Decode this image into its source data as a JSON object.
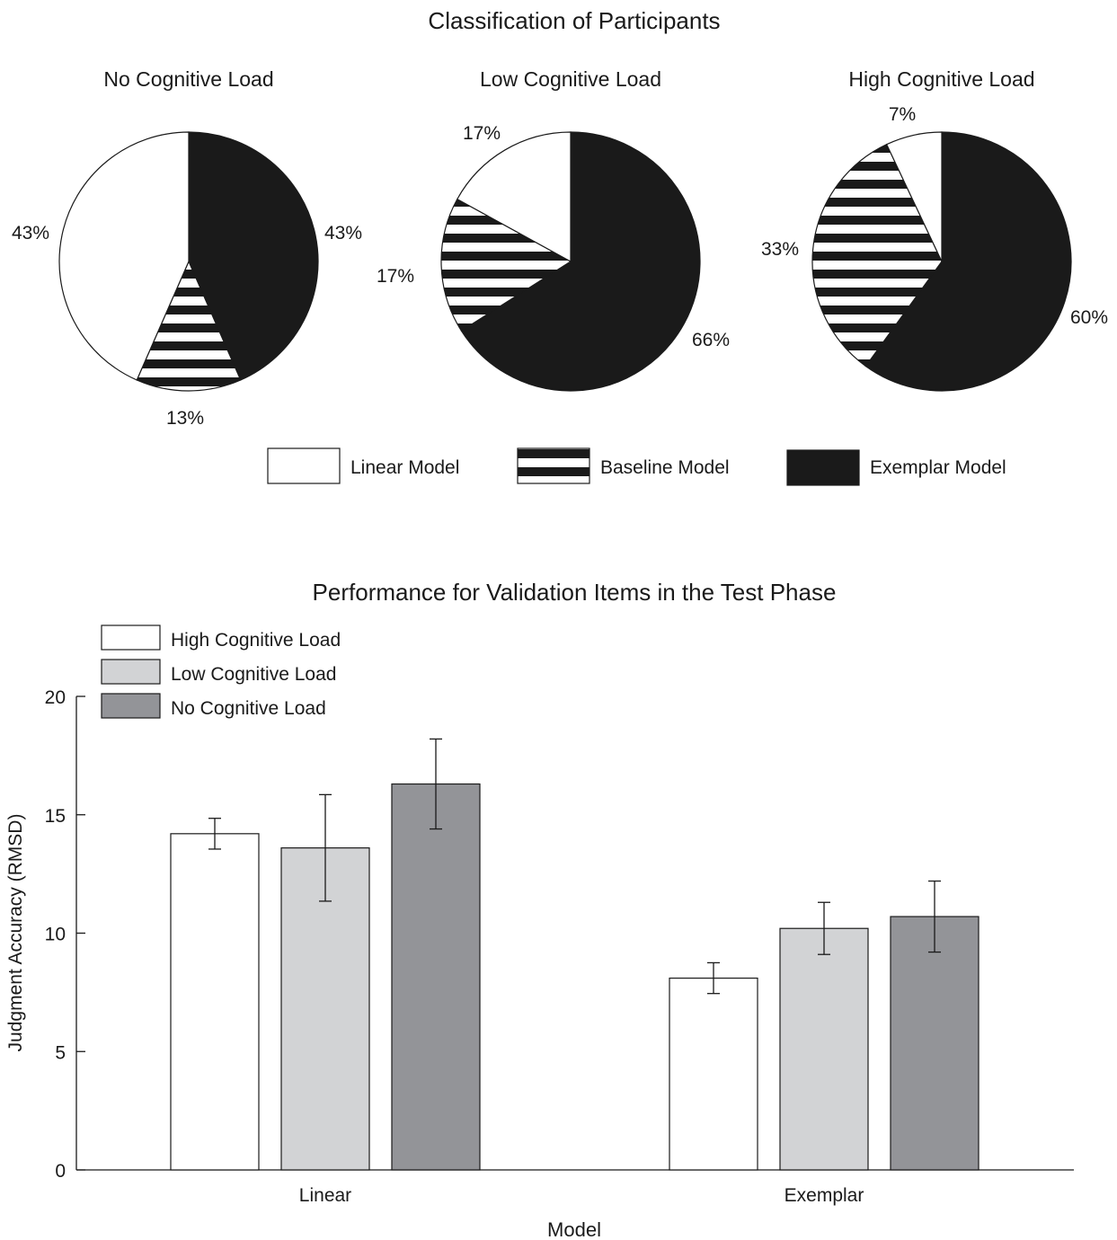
{
  "figure": {
    "top_title": "Classification of Participants",
    "bottom_title": "Performance for Validation Items in the Test Phase"
  },
  "colors": {
    "linear_model": "#ffffff",
    "baseline_model": "striped-black-white",
    "exemplar_model": "#1a1a1a",
    "high_load": "#ffffff",
    "low_load": "#d2d3d5",
    "no_load": "#939498"
  },
  "chart_data": [
    {
      "type": "pie",
      "title": "No Cognitive Load",
      "slices": [
        {
          "name": "Exemplar Model",
          "value": 43,
          "label": "43%"
        },
        {
          "name": "Baseline Model",
          "value": 13,
          "label": "13%"
        },
        {
          "name": "Linear Model",
          "value": 43,
          "label": "43%"
        }
      ]
    },
    {
      "type": "pie",
      "title": "Low Cognitive Load",
      "slices": [
        {
          "name": "Exemplar Model",
          "value": 66,
          "label": "66%"
        },
        {
          "name": "Baseline Model",
          "value": 17,
          "label": "17%"
        },
        {
          "name": "Linear Model",
          "value": 17,
          "label": "17%"
        }
      ]
    },
    {
      "type": "pie",
      "title": "High Cognitive Load",
      "slices": [
        {
          "name": "Exemplar Model",
          "value": 60,
          "label": "60%"
        },
        {
          "name": "Baseline Model",
          "value": 33,
          "label": "33%"
        },
        {
          "name": "Linear Model",
          "value": 7,
          "label": "7%"
        }
      ]
    },
    {
      "type": "bar",
      "title": "Performance for Validation Items in the Test Phase",
      "xlabel": "Model",
      "ylabel": "Judgment Accuracy (RMSD)",
      "categories": [
        "Linear",
        "Exemplar"
      ],
      "ylim": [
        0,
        20
      ],
      "yticks": [
        0,
        5,
        10,
        15,
        20
      ],
      "legend_position": "top-left",
      "series": [
        {
          "name": "High Cognitive Load",
          "values": [
            14.2,
            8.1
          ],
          "error": [
            0.65,
            0.65
          ]
        },
        {
          "name": "Low Cognitive Load",
          "values": [
            13.6,
            10.2
          ],
          "error": [
            2.25,
            1.1
          ]
        },
        {
          "name": "No Cognitive Load",
          "values": [
            16.3,
            10.7
          ],
          "error": [
            1.9,
            1.5
          ]
        }
      ]
    }
  ],
  "pie_legend": [
    "Linear Model",
    "Baseline Model",
    "Exemplar Model"
  ]
}
